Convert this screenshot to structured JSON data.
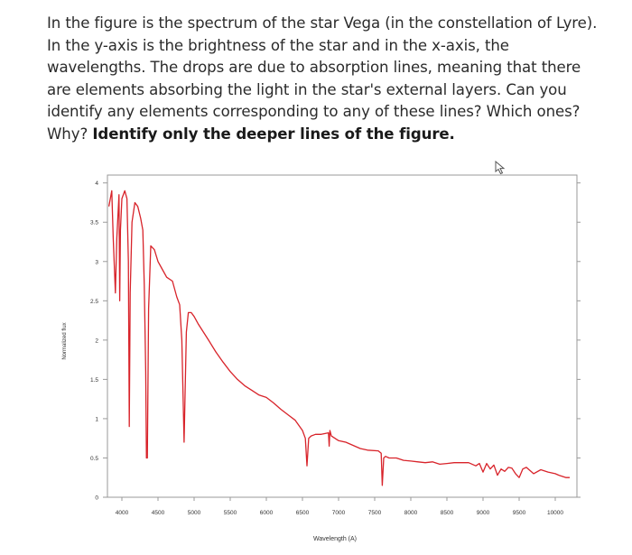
{
  "question": {
    "text": "In the figure is the spectrum of the star Vega (in the constellation of Lyre). In the y-axis is the brightness of the star and in the x-axis, the wavelengths. The drops are due to absorption lines, meaning that there are elements absorbing the light in the star's external layers. Can you identify any elements corresponding to any of these lines? Which ones? Why?",
    "emphasis": "Identify only the deeper lines of the figure."
  },
  "colors": {
    "spectrum_line": "#d8232a",
    "axis": "#9a9a9a",
    "grid": "#e4e4e4",
    "text": "#2b2b2b"
  },
  "cursor_icon": "mouse-cursor-icon",
  "chart_data": {
    "type": "line",
    "title": "",
    "xlabel": "Wavelength (A)",
    "ylabel": "Normalized flux",
    "xlim": [
      3800,
      10300
    ],
    "ylim": [
      0,
      4.1
    ],
    "x_ticks": [
      4000,
      4500,
      5000,
      5500,
      6000,
      6500,
      7000,
      7500,
      8000,
      8500,
      9000,
      9500,
      10000
    ],
    "x_tick_labels": [
      "4000",
      "4500",
      "5000",
      "5500",
      "6000",
      "6500",
      "7000",
      "7500",
      "8000",
      "8500",
      "9000",
      "9500",
      "10000"
    ],
    "y_ticks": [
      0,
      0.5,
      1,
      1.5,
      2,
      2.5,
      3,
      3.5,
      4
    ],
    "y_tick_labels": [
      "0",
      "0.5",
      "1",
      "1.5",
      "2",
      "2.5",
      "3",
      "3.5",
      "4"
    ],
    "grid": false,
    "series": [
      {
        "x": [
          3820,
          3860,
          3880,
          3910,
          3930,
          3960,
          3970,
          3980,
          4000,
          4040,
          4070,
          4090,
          4102,
          4115,
          4140,
          4180,
          4220,
          4260,
          4290,
          4310,
          4330,
          4340,
          4352,
          4370,
          4400,
          4450,
          4500,
          4560,
          4620,
          4700,
          4760,
          4800,
          4830,
          4861,
          4892,
          4920,
          4960,
          5000,
          5060,
          5130,
          5200,
          5300,
          5400,
          5500,
          5600,
          5700,
          5800,
          5900,
          6000,
          6100,
          6200,
          6300,
          6400,
          6500,
          6540,
          6563,
          6586,
          6620,
          6680,
          6760,
          6860,
          6870,
          6880,
          6900,
          7000,
          7100,
          7200,
          7300,
          7400,
          7550,
          7590,
          7605,
          7625,
          7650,
          7700,
          7800,
          7900,
          8000,
          8100,
          8200,
          8300,
          8400,
          8500,
          8600,
          8700,
          8800,
          8900,
          8950,
          9000,
          9050,
          9100,
          9150,
          9200,
          9250,
          9300,
          9350,
          9400,
          9450,
          9500,
          9550,
          9600,
          9700,
          9800,
          9900,
          10000,
          10050,
          10150,
          10200
        ],
        "y": [
          3.7,
          3.9,
          3.3,
          2.6,
          3.3,
          3.85,
          2.5,
          3.4,
          3.8,
          3.9,
          3.8,
          3.0,
          0.9,
          2.6,
          3.5,
          3.75,
          3.7,
          3.55,
          3.4,
          2.7,
          1.6,
          0.5,
          0.5,
          2.4,
          3.2,
          3.15,
          3.0,
          2.9,
          2.8,
          2.75,
          2.55,
          2.45,
          2.0,
          0.7,
          2.1,
          2.35,
          2.35,
          2.3,
          2.2,
          2.1,
          2.0,
          1.85,
          1.72,
          1.6,
          1.5,
          1.42,
          1.36,
          1.3,
          1.27,
          1.2,
          1.12,
          1.05,
          0.98,
          0.85,
          0.75,
          0.4,
          0.75,
          0.78,
          0.8,
          0.8,
          0.82,
          0.65,
          0.85,
          0.78,
          0.72,
          0.7,
          0.66,
          0.62,
          0.6,
          0.59,
          0.56,
          0.15,
          0.5,
          0.52,
          0.5,
          0.5,
          0.47,
          0.46,
          0.45,
          0.44,
          0.45,
          0.42,
          0.43,
          0.44,
          0.44,
          0.44,
          0.4,
          0.43,
          0.32,
          0.43,
          0.36,
          0.41,
          0.28,
          0.36,
          0.33,
          0.38,
          0.37,
          0.3,
          0.25,
          0.36,
          0.38,
          0.3,
          0.35,
          0.32,
          0.3,
          0.28,
          0.25,
          0.25
        ]
      }
    ]
  }
}
